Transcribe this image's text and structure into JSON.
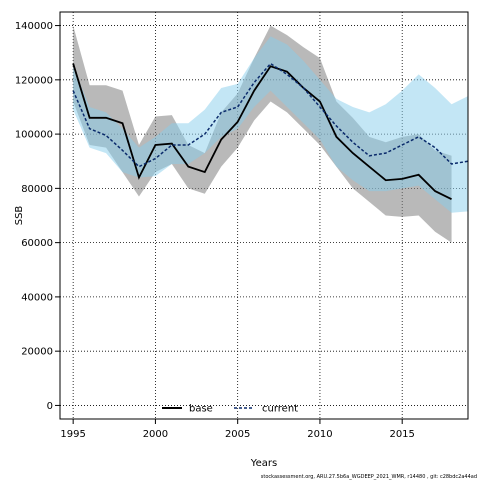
{
  "chart_data": {
    "type": "line",
    "xlabel": "Years",
    "ylabel": "SSB",
    "xlim": [
      1994.2,
      2019.0
    ],
    "ylim": [
      -5000,
      145000
    ],
    "xticks": [
      1995,
      2000,
      2005,
      2010,
      2015
    ],
    "yticks": [
      0,
      20000,
      40000,
      60000,
      80000,
      100000,
      120000,
      140000
    ],
    "grid": true,
    "legend_position": "bottom-center",
    "footnote": "stockassessment.org, ARU.27.5b6a_WGDEEP_2021_WMR, r14480 , git: c28bdc2a44ad",
    "x": [
      1995,
      1996,
      1997,
      1998,
      1999,
      2000,
      2001,
      2002,
      2003,
      2004,
      2005,
      2006,
      2007,
      2008,
      2009,
      2010,
      2011,
      2012,
      2013,
      2014,
      2015,
      2016,
      2017,
      2018
    ],
    "series": [
      {
        "name": "base",
        "color": "#000000",
        "band_color": "#808080",
        "values": [
          126000,
          106000,
          106000,
          104000,
          84000,
          96000,
          96500,
          88000,
          86000,
          98000,
          104500,
          116000,
          125000,
          123000,
          117000,
          112000,
          99000,
          93000,
          88000,
          83000,
          83500,
          85000,
          79000,
          76000
        ],
        "lower": [
          112000,
          96000,
          95000,
          86000,
          77000,
          86000,
          89000,
          80000,
          78000,
          88000,
          95000,
          105000,
          112000,
          108000,
          102000,
          96000,
          88000,
          80000,
          75000,
          70000,
          69500,
          70000,
          64000,
          60000
        ],
        "upper": [
          140000,
          118000,
          118000,
          116000,
          96000,
          106500,
          107000,
          96000,
          93000,
          108000,
          115000,
          128000,
          140000,
          136500,
          132000,
          128000,
          112000,
          106000,
          99000,
          97000,
          99000,
          100000,
          94000,
          92000
        ]
      },
      {
        "name": "current",
        "color": "#0a2a6b",
        "band_color": "#87ceeb",
        "values": [
          116000,
          102000,
          99500,
          94000,
          88000,
          91000,
          96000,
          96000,
          100000,
          108000,
          110000,
          119000,
          126000,
          122000,
          117000,
          110000,
          103000,
          97000,
          92000,
          93000,
          96000,
          99000,
          95000,
          89000,
          90000
        ],
        "lower": [
          109000,
          95000,
          93000,
          86000,
          84000,
          84500,
          89000,
          89000,
          93000,
          99000,
          102000,
          110000,
          116000,
          110000,
          104000,
          98000,
          88000,
          83000,
          79000,
          79000,
          80000,
          81000,
          76000,
          71000,
          71500
        ],
        "upper": [
          125000,
          110000,
          108000,
          102000,
          95000,
          99000,
          104000,
          104000,
          109000,
          117000,
          118500,
          128000,
          136000,
          133000,
          127000,
          120000,
          113000,
          110000,
          108000,
          111000,
          116000,
          122000,
          117000,
          111000,
          114000
        ],
        "x": [
          1995,
          1996,
          1997,
          1998,
          1999,
          2000,
          2001,
          2002,
          2003,
          2004,
          2005,
          2006,
          2007,
          2008,
          2009,
          2010,
          2011,
          2012,
          2013,
          2014,
          2015,
          2016,
          2017,
          2018,
          2019
        ]
      }
    ]
  }
}
